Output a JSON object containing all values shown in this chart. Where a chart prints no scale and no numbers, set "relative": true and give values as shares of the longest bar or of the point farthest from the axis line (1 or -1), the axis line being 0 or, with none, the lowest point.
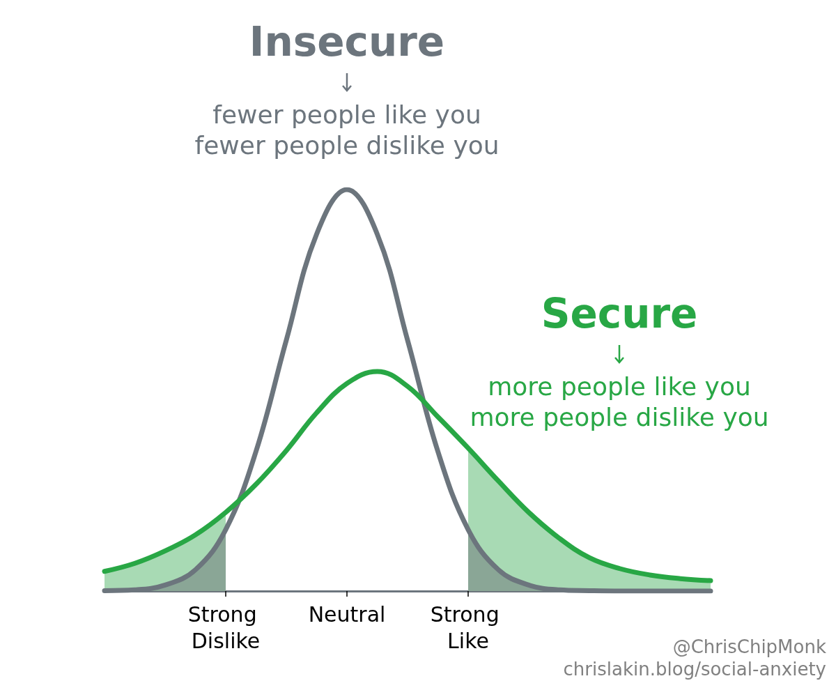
{
  "chart_data": {
    "type": "line",
    "relative": true,
    "grid": false,
    "marker": "none",
    "line_style": "solid",
    "categories": [
      null,
      null,
      null,
      null,
      "Strong Dislike",
      null,
      null,
      null,
      "Neutral",
      null,
      null,
      null,
      "Strong Like",
      null,
      null,
      null,
      null,
      null,
      null,
      null,
      null
    ],
    "series": [
      {
        "color": "#6c757d",
        "values": [
          0.001,
          0.003,
          0.015,
          0.053,
          0.153,
          0.348,
          0.625,
          0.889,
          1,
          0.889,
          0.625,
          0.348,
          0.153,
          0.053,
          0.015,
          0.003,
          0.001,
          0,
          0,
          0,
          0
        ]
      },
      {
        "color": "#28a745",
        "values": [
          0.049,
          0.069,
          0.1,
          0.14,
          0.196,
          0.266,
          0.35,
          0.444,
          0.517,
          0.547,
          0.51,
          0.434,
          0.356,
          0.274,
          0.196,
          0.132,
          0.083,
          0.056,
          0.04,
          0.031,
          0.026
        ]
      },
      {
        "type": "area",
        "color": "#a8dab4",
        "values": [
          0.049,
          0.069,
          0.1,
          0.14,
          0.196,
          null,
          null,
          null,
          null,
          null,
          null,
          null,
          null,
          null,
          null,
          null,
          null,
          null,
          null,
          null,
          null
        ]
      },
      {
        "type": "area",
        "color": "#a8dab4",
        "values": [
          null,
          null,
          null,
          null,
          null,
          null,
          null,
          null,
          null,
          null,
          null,
          null,
          0.356,
          0.274,
          0.196,
          0.132,
          0.083,
          0.056,
          0.04,
          0.031,
          0.026
        ]
      },
      {
        "type": "area",
        "color": "#8aa696",
        "values": [
          0.001,
          0.003,
          0.015,
          0.053,
          0.153,
          null,
          null,
          null,
          null,
          null,
          null,
          null,
          null,
          null,
          null,
          null,
          null,
          null,
          null,
          null,
          null
        ]
      },
      {
        "type": "area",
        "color": "#8aa696",
        "values": [
          null,
          null,
          null,
          null,
          null,
          null,
          null,
          null,
          null,
          null,
          null,
          null,
          0.153,
          0.053,
          0.015,
          0.003,
          0.001,
          0,
          0,
          0,
          0
        ]
      }
    ],
    "annotations": [
      "Insecure",
      "fewer people like you\nfewer people dislike you",
      "Secure",
      "more people like you\nmore people dislike you",
      "@ChrisChipMonk",
      "chrislakin.blog/social-anxiety"
    ]
  }
}
